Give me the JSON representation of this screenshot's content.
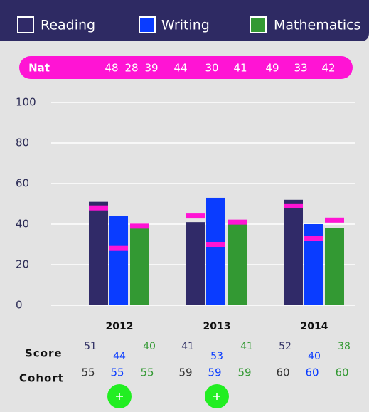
{
  "chart_data": {
    "type": "bar",
    "nat_label": "Nat",
    "categories": [
      "2012",
      "2013",
      "2014"
    ],
    "series": [
      {
        "name": "Reading",
        "color": "#302a68",
        "values": [
          51,
          41,
          52
        ],
        "nat": [
          48,
          44,
          49
        ],
        "cohort": [
          55,
          59,
          60
        ]
      },
      {
        "name": "Writing",
        "color": "#0a3cff",
        "values": [
          44,
          53,
          40
        ],
        "nat": [
          28,
          30,
          33
        ],
        "cohort": [
          55,
          59,
          60
        ]
      },
      {
        "name": "Mathematics",
        "color": "#339933",
        "values": [
          40,
          41,
          38
        ],
        "nat": [
          39,
          41,
          42
        ],
        "cohort": [
          55,
          59,
          60
        ]
      }
    ],
    "nat_color": "#ff14d4",
    "row_labels": [
      "Score",
      "Cohort"
    ],
    "ylim": [
      0,
      100
    ],
    "yticks": [
      0,
      20,
      40,
      60,
      80,
      100
    ],
    "grid": true
  }
}
